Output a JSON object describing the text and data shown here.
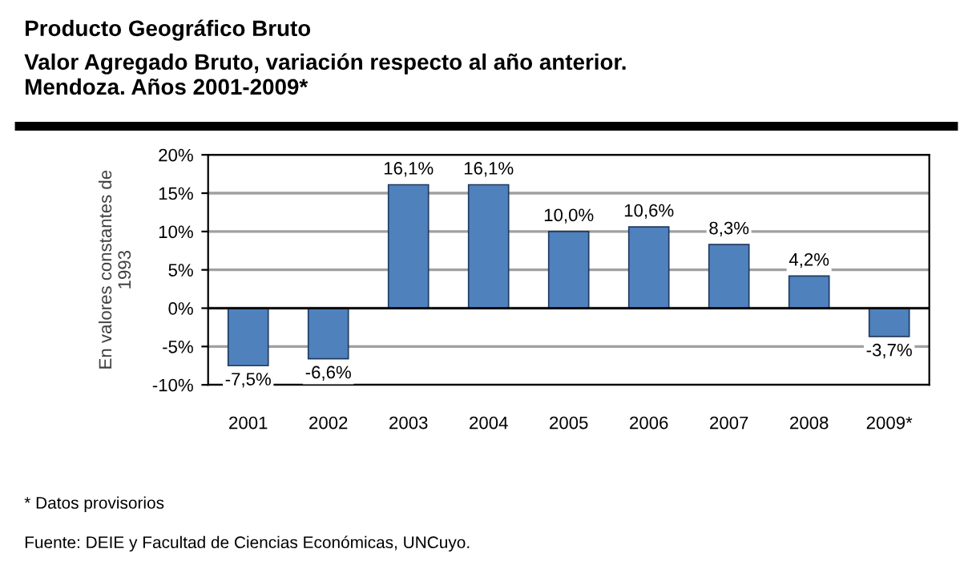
{
  "chart_data": {
    "type": "bar",
    "title": "Producto Geográfico Bruto",
    "subtitle": "Valor Agregado Bruto, variación respecto al año anterior.\nMendoza. Años 2001-2009*",
    "ylabel": "En valores constantes de\n1993",
    "categories": [
      "2001",
      "2002",
      "2003",
      "2004",
      "2005",
      "2006",
      "2007",
      "2008",
      "2009*"
    ],
    "values": [
      -7.5,
      -6.6,
      16.1,
      16.1,
      10.0,
      10.6,
      8.3,
      4.2,
      -3.7
    ],
    "value_labels": [
      "-7,5%",
      "-6,6%",
      "16,1%",
      "16,1%",
      "10,0%",
      "10,6%",
      "8,3%",
      "4,2%",
      "-3,7%"
    ],
    "color": "#4f81bd",
    "ylim": [
      -10,
      20
    ],
    "yticks": [
      {
        "value": -10,
        "label": "-10%"
      },
      {
        "value": -5,
        "label": "-5%"
      },
      {
        "value": 0,
        "label": "0%"
      },
      {
        "value": 5,
        "label": "5%"
      },
      {
        "value": 10,
        "label": "10%"
      },
      {
        "value": 15,
        "label": "15%"
      },
      {
        "value": 20,
        "label": "20%"
      }
    ],
    "grid": "y",
    "annotations": [
      "* Datos provisorios",
      "Fuente: DEIE y Facultad de Ciencias Económicas, UNCuyo."
    ]
  }
}
